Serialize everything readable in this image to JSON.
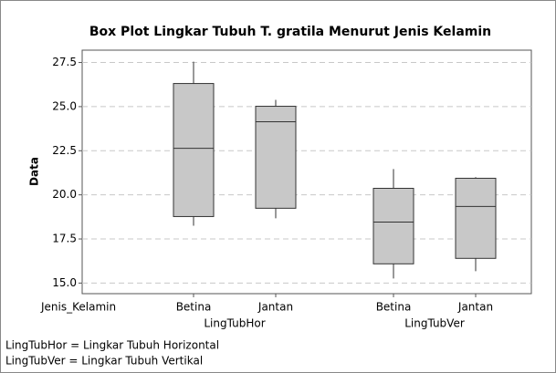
{
  "chart_data": {
    "type": "box",
    "title": "Box Plot Lingkar Tubuh  T. gratila Menurut Jenis Kelamin",
    "ylabel": "Data",
    "xlabel": "Jenis_Kelamin",
    "groups": [
      {
        "name": "LingTubHor",
        "categories": [
          "Betina",
          "Jantan"
        ],
        "boxes": [
          {
            "min": 18.25,
            "q1": 18.77,
            "median": 22.64,
            "q3": 26.31,
            "max": 27.55
          },
          {
            "min": 18.67,
            "q1": 19.24,
            "median": 24.14,
            "q3": 25.02,
            "max": 25.38
          }
        ]
      },
      {
        "name": "LingTubVer",
        "categories": [
          "Betina",
          "Jantan"
        ],
        "boxes": [
          {
            "min": 15.26,
            "q1": 16.09,
            "median": 18.46,
            "q3": 20.37,
            "max": 21.46
          },
          {
            "min": 15.67,
            "q1": 16.4,
            "median": 19.34,
            "q3": 20.94,
            "max": 21.0
          }
        ]
      }
    ],
    "color": "#c8c8c8",
    "ylim": [
      14.4,
      28.2
    ],
    "yticks": [
      {
        "value": 15,
        "label": "15.0"
      },
      17.5,
      {
        "value": 20,
        "label": "20.0"
      },
      22.5,
      {
        "value": 25,
        "label": "25.0"
      },
      27.5
    ],
    "grid": true,
    "notes": [
      "LingTubHor = Lingkar Tubuh Horizontal",
      "LingTubVer = Lingkar Tubuh Vertikal"
    ]
  }
}
